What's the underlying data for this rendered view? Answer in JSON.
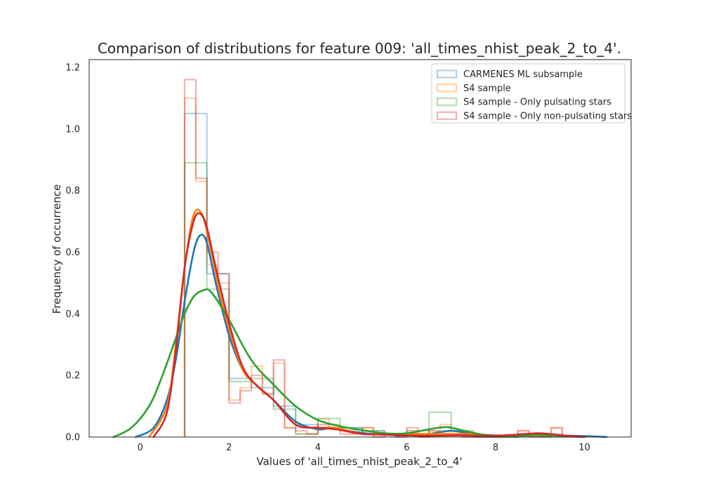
{
  "chart_data": {
    "type": "histogram",
    "title": "Comparison of distributions for feature 009: 'all_times_nhist_peak_2_to_4'.",
    "xlabel": "Values of 'all_times_nhist_peak_2_to_4'",
    "ylabel": "Frequency of occurrence",
    "xlim": [
      -1.15,
      11.05
    ],
    "ylim": [
      0,
      1.225
    ],
    "xticks": [
      0,
      2,
      4,
      6,
      8,
      10
    ],
    "yticks": [
      0.0,
      0.2,
      0.4,
      0.6,
      0.8,
      1.0,
      1.2
    ],
    "xtick_labels": [
      "0",
      "2",
      "4",
      "6",
      "8",
      "10"
    ],
    "ytick_labels": [
      "0.0",
      "0.2",
      "0.4",
      "0.6",
      "0.8",
      "1.0",
      "1.2"
    ],
    "grid": false,
    "legend_position": "top-right",
    "series": [
      {
        "name": "CARMENES ML subsample",
        "color": "#1f77b4",
        "hist": {
          "edges": [
            1.0,
            1.5,
            2.0,
            2.5,
            3.0,
            3.5,
            4.0,
            4.5,
            5.0,
            5.5,
            6.0,
            6.5,
            7.0,
            7.5,
            8.0,
            8.5,
            9.0,
            9.5,
            10.0
          ],
          "heights": [
            1.05,
            0.53,
            0.19,
            0.16,
            0.1,
            0.04,
            0.03,
            0.03,
            0.02,
            0.01,
            0.02,
            0.01,
            0.01,
            0.0,
            0.0,
            0.01,
            0.01,
            0.0
          ]
        },
        "kde": {
          "x": [
            -0.1,
            0.3,
            0.6,
            0.8,
            1.0,
            1.2,
            1.35,
            1.5,
            1.7,
            2.0,
            2.3,
            2.6,
            3.0,
            3.5,
            4.0,
            4.3,
            4.7,
            5.2,
            6.0,
            6.5,
            7.0,
            7.5,
            8.0,
            8.5,
            9.0,
            9.5,
            10.0,
            10.5
          ],
          "y": [
            0.0,
            0.03,
            0.12,
            0.25,
            0.44,
            0.6,
            0.655,
            0.63,
            0.5,
            0.33,
            0.22,
            0.17,
            0.12,
            0.05,
            0.025,
            0.03,
            0.02,
            0.01,
            0.005,
            0.01,
            0.02,
            0.01,
            0.005,
            0.005,
            0.01,
            0.005,
            0.003,
            0.0
          ]
        }
      },
      {
        "name": "S4 sample",
        "color": "#ff7f0e",
        "hist": {
          "edges": [
            1.0,
            1.25,
            1.5,
            1.75,
            2.0,
            2.25,
            2.5,
            2.75,
            3.0,
            3.25,
            3.5,
            3.75,
            4.0,
            4.25,
            4.5,
            4.75,
            5.0,
            5.25,
            5.5,
            5.75,
            6.0,
            6.25,
            6.5,
            6.75,
            7.0,
            7.25,
            7.5,
            7.75,
            8.0,
            8.25,
            8.5,
            8.75,
            9.0,
            9.25,
            9.5
          ],
          "heights": [
            1.1,
            0.83,
            0.56,
            0.5,
            0.12,
            0.16,
            0.23,
            0.14,
            0.24,
            0.03,
            0.01,
            0.01,
            0.06,
            0.04,
            0.02,
            0.01,
            0.03,
            0.0,
            0.01,
            0.0,
            0.02,
            0.0,
            0.02,
            0.04,
            0.01,
            0.0,
            0.0,
            0.0,
            0.0,
            0.0,
            0.02,
            0.0,
            0.0,
            0.03
          ]
        },
        "kde": {
          "x": [
            0.2,
            0.6,
            0.8,
            1.0,
            1.2,
            1.4,
            1.6,
            1.8,
            2.0,
            2.3,
            2.6,
            3.0,
            3.5,
            4.0,
            4.4,
            5.0,
            5.5,
            6.0,
            6.5,
            7.0,
            7.5,
            8.0,
            8.5,
            9.0,
            9.5,
            10.0
          ],
          "y": [
            0.0,
            0.1,
            0.3,
            0.55,
            0.72,
            0.72,
            0.6,
            0.46,
            0.35,
            0.22,
            0.17,
            0.12,
            0.04,
            0.03,
            0.03,
            0.01,
            0.01,
            0.01,
            0.01,
            0.01,
            0.01,
            0.003,
            0.005,
            0.008,
            0.004,
            0.0
          ]
        }
      },
      {
        "name": "S4 sample - Only pulsating stars",
        "color": "#2ca02c",
        "hist": {
          "edges": [
            1.0,
            1.5,
            2.0,
            2.5,
            3.0,
            3.5,
            4.0,
            4.5,
            5.0,
            5.5,
            6.0,
            6.5,
            7.0,
            7.5,
            8.0,
            8.5,
            9.0,
            9.5
          ],
          "heights": [
            0.89,
            0.48,
            0.18,
            0.19,
            0.09,
            0.01,
            0.06,
            0.03,
            0.02,
            0.01,
            0.01,
            0.08,
            0.02,
            0.0,
            0.0,
            0.01,
            0.0
          ]
        },
        "kde": {
          "x": [
            -0.6,
            -0.2,
            0.2,
            0.5,
            0.8,
            1.0,
            1.2,
            1.4,
            1.6,
            2.0,
            2.5,
            3.0,
            3.5,
            4.0,
            4.5,
            5.0,
            5.5,
            6.0,
            6.5,
            6.9,
            7.3,
            7.8,
            8.5,
            9.0,
            9.5,
            10.0
          ],
          "y": [
            0.0,
            0.03,
            0.1,
            0.2,
            0.32,
            0.4,
            0.455,
            0.475,
            0.47,
            0.38,
            0.25,
            0.17,
            0.1,
            0.055,
            0.035,
            0.022,
            0.012,
            0.012,
            0.025,
            0.032,
            0.02,
            0.006,
            0.004,
            0.006,
            0.004,
            0.0
          ]
        }
      },
      {
        "name": "S4 sample - Only non-pulsating stars",
        "color": "#d62728",
        "hist": {
          "edges": [
            1.0,
            1.25,
            1.5,
            1.75,
            2.0,
            2.25,
            2.5,
            2.75,
            3.0,
            3.25,
            3.5,
            3.75,
            4.0,
            4.25,
            4.5,
            4.75,
            5.0,
            5.25,
            5.5,
            5.75,
            6.0,
            6.25,
            6.5,
            6.75,
            7.0,
            7.25,
            7.5,
            7.75,
            8.0,
            8.25,
            8.5,
            8.75,
            9.0,
            9.25,
            9.5
          ],
          "heights": [
            1.16,
            0.84,
            0.6,
            0.53,
            0.11,
            0.15,
            0.2,
            0.14,
            0.25,
            0.03,
            0.02,
            0.01,
            0.04,
            0.03,
            0.01,
            0.01,
            0.03,
            0.0,
            0.01,
            0.0,
            0.03,
            0.0,
            0.02,
            0.01,
            0.01,
            0.0,
            0.0,
            0.0,
            0.0,
            0.0,
            0.02,
            0.0,
            0.0,
            0.03
          ]
        },
        "kde": {
          "x": [
            0.3,
            0.6,
            0.8,
            1.0,
            1.2,
            1.35,
            1.5,
            1.7,
            2.0,
            2.3,
            2.6,
            3.0,
            3.5,
            4.0,
            4.4,
            5.0,
            5.5,
            6.0,
            6.5,
            7.0,
            7.5,
            8.0,
            8.5,
            9.0,
            9.5,
            10.0
          ],
          "y": [
            0.0,
            0.08,
            0.28,
            0.55,
            0.7,
            0.725,
            0.68,
            0.55,
            0.37,
            0.23,
            0.17,
            0.12,
            0.04,
            0.03,
            0.025,
            0.01,
            0.008,
            0.005,
            0.004,
            0.005,
            0.005,
            0.004,
            0.008,
            0.012,
            0.005,
            0.0
          ]
        }
      }
    ]
  }
}
